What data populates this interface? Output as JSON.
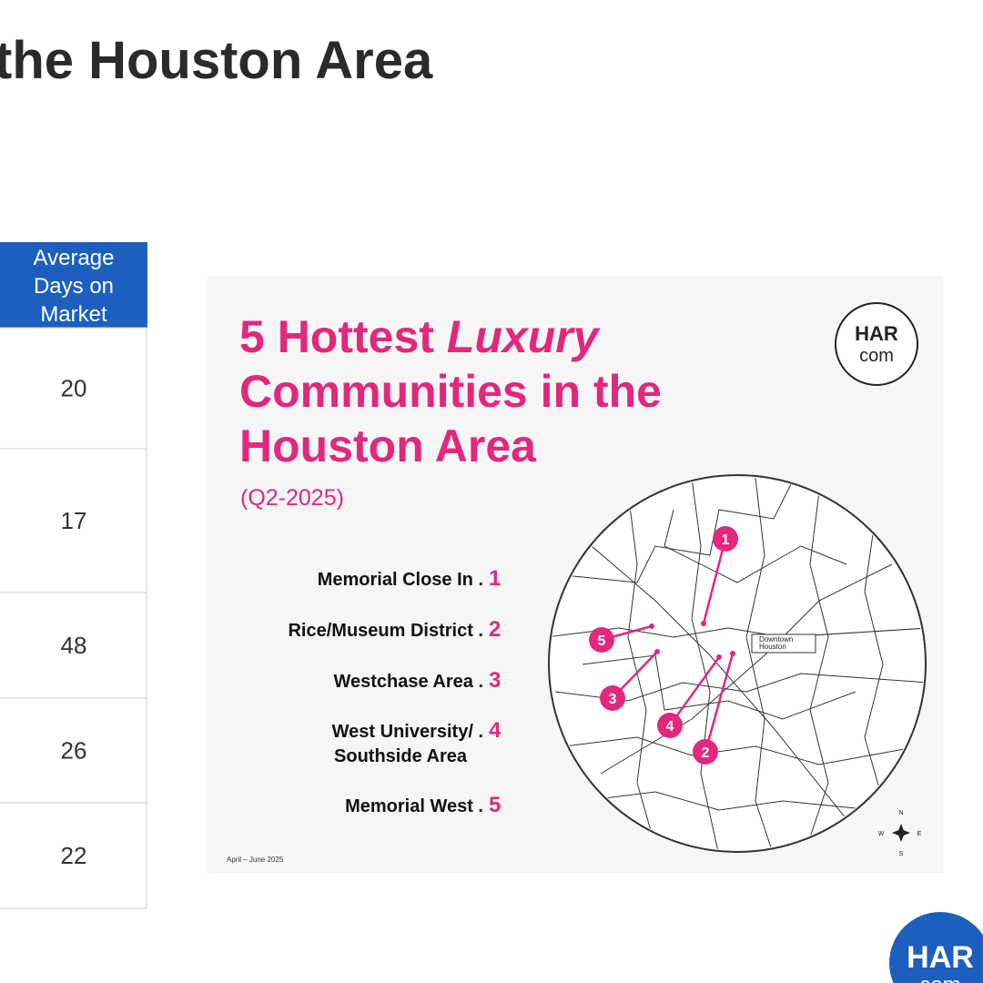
{
  "header": {
    "title": "the Houston Area"
  },
  "table": {
    "header": [
      "Average",
      "Days on",
      "Market"
    ],
    "rows": [
      20,
      17,
      48,
      26,
      22
    ]
  },
  "infographic": {
    "title": {
      "line1_plain": "5 Hottest",
      "line1_italic": "Luxury",
      "line2": "Communities in the",
      "line3": "Houston Area"
    },
    "period": "(Q2-2025)",
    "communities": [
      {
        "name": [
          "Memorial Close In ."
        ],
        "rank": "1"
      },
      {
        "name": [
          "Rice/Museum District ."
        ],
        "rank": "2"
      },
      {
        "name": [
          "Westchase Area ."
        ],
        "rank": "3"
      },
      {
        "name": [
          "West University/ .",
          "Southside Area"
        ],
        "rank": "4"
      },
      {
        "name": [
          "Memorial West ."
        ],
        "rank": "5"
      }
    ],
    "map_label": [
      "Downtown",
      "Houston"
    ],
    "compass": [
      "N",
      "E",
      "S",
      "W"
    ],
    "footnote": "April – June 2025",
    "logo": [
      "HAR",
      "com"
    ]
  },
  "footer_logo": [
    "HAR",
    "com"
  ]
}
